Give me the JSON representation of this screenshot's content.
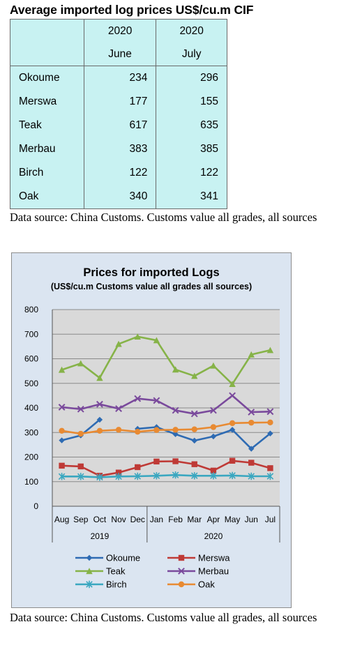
{
  "table": {
    "title": "Average imported log prices US$/cu.m CIF",
    "columns": [
      {
        "year": "2020",
        "month": "June"
      },
      {
        "year": "2020",
        "month": "July"
      }
    ],
    "rows": [
      {
        "name": "Okoume",
        "june": "234",
        "july": "296"
      },
      {
        "name": "Merswa",
        "june": "177",
        "july": "155"
      },
      {
        "name": "Teak",
        "june": "617",
        "july": "635"
      },
      {
        "name": "Merbau",
        "june": "383",
        "july": "385"
      },
      {
        "name": "Birch",
        "june": "122",
        "july": "122"
      },
      {
        "name": "Oak",
        "june": "340",
        "july": "341"
      }
    ]
  },
  "source_note_1": "Data source: China Customs. Customs value all grades, all sources",
  "source_note_2": "Data source: China Customs. Customs value all grades, all sources",
  "chart_data": {
    "type": "line",
    "title": "Prices for imported Logs",
    "subtitle": "(US$/cu.m Customs value all grades all sources)",
    "categories": [
      "Aug",
      "Sep",
      "Oct",
      "Nov",
      "Dec",
      "Jan",
      "Feb",
      "Mar",
      "Apr",
      "May",
      "Jun",
      "Jul"
    ],
    "groups": [
      {
        "label": "2019",
        "start": 0,
        "end": 4
      },
      {
        "label": "2020",
        "start": 5,
        "end": 11
      }
    ],
    "ylim": [
      0,
      800
    ],
    "yticks": [
      0,
      100,
      200,
      300,
      400,
      500,
      600,
      700,
      800
    ],
    "grid": true,
    "legend_position": "bottom",
    "series": [
      {
        "name": "Okoume",
        "color": "#2e6bb3",
        "marker": "diamond",
        "values": [
          268,
          288,
          352,
          null,
          315,
          322,
          293,
          267,
          284,
          311,
          234,
          296
        ]
      },
      {
        "name": "Merswa",
        "color": "#bf3a36",
        "marker": "square",
        "values": [
          165,
          162,
          124,
          137,
          159,
          182,
          183,
          171,
          145,
          185,
          177,
          155
        ]
      },
      {
        "name": "Teak",
        "color": "#86b348",
        "marker": "triangle",
        "values": [
          555,
          581,
          522,
          660,
          690,
          675,
          556,
          530,
          572,
          497,
          617,
          635
        ]
      },
      {
        "name": "Merbau",
        "color": "#7a4a9c",
        "marker": "x",
        "values": [
          403,
          395,
          415,
          397,
          438,
          430,
          390,
          376,
          390,
          450,
          383,
          385
        ]
      },
      {
        "name": "Birch",
        "color": "#3aa7c0",
        "marker": "asterisk",
        "values": [
          121,
          121,
          118,
          121,
          122,
          124,
          127,
          124,
          124,
          125,
          122,
          122
        ]
      },
      {
        "name": "Oak",
        "color": "#e88a32",
        "marker": "circle",
        "values": [
          307,
          295,
          307,
          311,
          303,
          310,
          311,
          313,
          322,
          338,
          340,
          341
        ]
      }
    ]
  }
}
